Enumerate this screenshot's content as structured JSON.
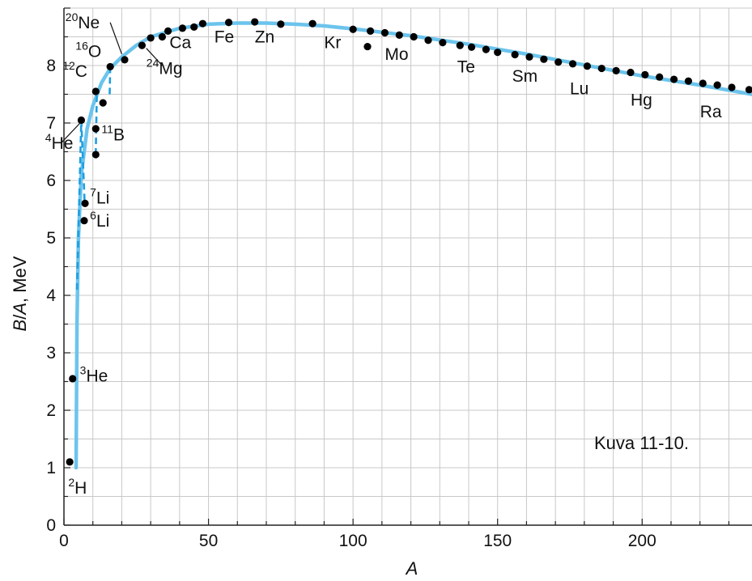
{
  "chart_data": {
    "type": "scatter",
    "title": "",
    "xlabel": "A",
    "ylabel_parts": [
      "B",
      "/",
      "A",
      ", MeV"
    ],
    "xlim": [
      0,
      238
    ],
    "ylim": [
      0,
      9
    ],
    "x_ticks": [
      0,
      50,
      100,
      150,
      200
    ],
    "y_ticks": [
      0,
      1,
      2,
      3,
      4,
      5,
      6,
      7,
      8
    ],
    "x_grid_step": 10,
    "grid": true,
    "annotation": "Kuva 11-10.",
    "colors": {
      "curve": "#6cc4ec",
      "dashed": "#1e9ee0",
      "points": "#000000",
      "grid": "#c8c8c8"
    },
    "points": [
      [
        2,
        1.1
      ],
      [
        3,
        2.55
      ],
      [
        6,
        7.05
      ],
      [
        7,
        5.3
      ],
      [
        7.3,
        5.6
      ],
      [
        11,
        6.45
      ],
      [
        11,
        6.9
      ],
      [
        11,
        7.55
      ],
      [
        13.5,
        7.35
      ],
      [
        16,
        7.98
      ],
      [
        21,
        8.1
      ],
      [
        27,
        8.35
      ],
      [
        30,
        8.48
      ],
      [
        34,
        8.5
      ],
      [
        36,
        8.6
      ],
      [
        41,
        8.65
      ],
      [
        45,
        8.67
      ],
      [
        48,
        8.73
      ],
      [
        57,
        8.75
      ],
      [
        66,
        8.76
      ],
      [
        75,
        8.72
      ],
      [
        86,
        8.73
      ],
      [
        100,
        8.63
      ],
      [
        106,
        8.6
      ],
      [
        111,
        8.57
      ],
      [
        105,
        8.33
      ],
      [
        116,
        8.53
      ],
      [
        121,
        8.5
      ],
      [
        126,
        8.44
      ],
      [
        131,
        8.4
      ],
      [
        137,
        8.35
      ],
      [
        141,
        8.32
      ],
      [
        146,
        8.28
      ],
      [
        150,
        8.23
      ],
      [
        156,
        8.19
      ],
      [
        161,
        8.15
      ],
      [
        166,
        8.11
      ],
      [
        171,
        8.06
      ],
      [
        176,
        8.03
      ],
      [
        181,
        7.99
      ],
      [
        186,
        7.95
      ],
      [
        191,
        7.91
      ],
      [
        196,
        7.88
      ],
      [
        201,
        7.84
      ],
      [
        206,
        7.8
      ],
      [
        211,
        7.76
      ],
      [
        216,
        7.73
      ],
      [
        221,
        7.69
      ],
      [
        226,
        7.66
      ],
      [
        231,
        7.62
      ],
      [
        237,
        7.58
      ]
    ],
    "curve": [
      [
        4.2,
        1.0
      ],
      [
        4.5,
        3.5
      ],
      [
        5,
        5.0
      ],
      [
        6,
        6.1
      ],
      [
        8,
        6.9
      ],
      [
        10,
        7.3
      ],
      [
        13,
        7.7
      ],
      [
        16,
        7.95
      ],
      [
        20,
        8.15
      ],
      [
        25,
        8.35
      ],
      [
        30,
        8.5
      ],
      [
        40,
        8.65
      ],
      [
        50,
        8.72
      ],
      [
        60,
        8.74
      ],
      [
        70,
        8.74
      ],
      [
        80,
        8.72
      ],
      [
        90,
        8.69
      ],
      [
        100,
        8.64
      ],
      [
        120,
        8.52
      ],
      [
        140,
        8.37
      ],
      [
        160,
        8.2
      ],
      [
        180,
        8.01
      ],
      [
        200,
        7.82
      ],
      [
        220,
        7.66
      ],
      [
        238,
        7.5
      ]
    ],
    "dashed_segments": [
      [
        [
          4.5,
          4.1
        ],
        [
          6,
          7.05
        ]
      ],
      [
        [
          6,
          7.05
        ],
        [
          7.2,
          5.55
        ]
      ],
      [
        [
          11,
          6.45
        ],
        [
          11.4,
          7.6
        ]
      ],
      [
        [
          16,
          7.98
        ],
        [
          15.8,
          7.45
        ]
      ]
    ],
    "labels": [
      {
        "sup": "2",
        "text": "H",
        "x": 1.5,
        "y": 0.55
      },
      {
        "sup": "3",
        "text": "He",
        "x": 5.5,
        "y": 2.5
      },
      {
        "sup": "4",
        "text": "He",
        "x": -6.5,
        "y": 6.55
      },
      {
        "sup": "6",
        "text": "Li",
        "x": 9,
        "y": 5.2
      },
      {
        "sup": "7",
        "text": "Li",
        "x": 9,
        "y": 5.6
      },
      {
        "sup": "11",
        "text": "B",
        "x": 13,
        "y": 6.7
      },
      {
        "sup": "12",
        "text": "C",
        "x": -0.5,
        "y": 7.8
      },
      {
        "sup": "16",
        "text": "O",
        "x": 4,
        "y": 8.15
      },
      {
        "sup": "20",
        "text": "Ne",
        "x": 0.5,
        "y": 8.65
      },
      {
        "sup": "24",
        "text": "Mg",
        "x": 28.5,
        "y": 7.85
      },
      {
        "sup": "",
        "text": "Ca",
        "x": 36.5,
        "y": 8.3
      },
      {
        "sup": "",
        "text": "Fe",
        "x": 52,
        "y": 8.4
      },
      {
        "sup": "",
        "text": "Zn",
        "x": 66,
        "y": 8.4
      },
      {
        "sup": "",
        "text": "Kr",
        "x": 90,
        "y": 8.3
      },
      {
        "sup": "",
        "text": "Mo",
        "x": 111,
        "y": 8.1
      },
      {
        "sup": "",
        "text": "Te",
        "x": 136,
        "y": 7.88
      },
      {
        "sup": "",
        "text": "Sm",
        "x": 155,
        "y": 7.72
      },
      {
        "sup": "",
        "text": "Lu",
        "x": 175,
        "y": 7.5
      },
      {
        "sup": "",
        "text": "Hg",
        "x": 196,
        "y": 7.3
      },
      {
        "sup": "",
        "text": "Ra",
        "x": 220,
        "y": 7.1
      }
    ],
    "leaders": [
      {
        "from": [
          -1,
          6.65
        ],
        "to": [
          5.6,
          7.0
        ]
      },
      {
        "from": [
          16,
          8.75
        ],
        "to": [
          20,
          8.2
        ]
      },
      {
        "from": [
          34,
          8.0
        ],
        "to": [
          28.5,
          8.3
        ]
      }
    ]
  }
}
